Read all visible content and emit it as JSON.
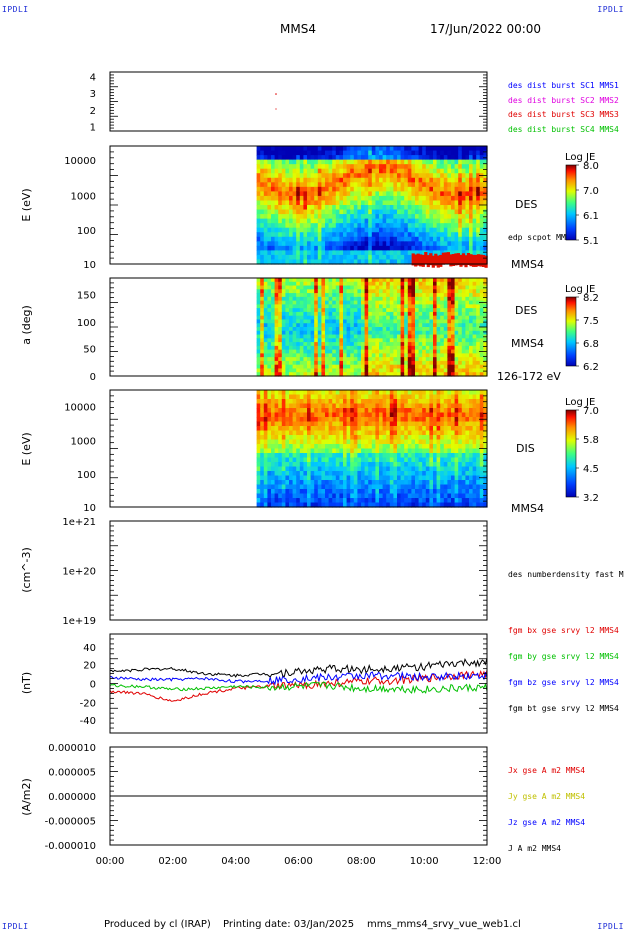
{
  "corners": {
    "tl": "IPDLI",
    "tr": "IPDLI",
    "bl": "IPDLI",
    "br": "IPDLI"
  },
  "header": {
    "mission": "MMS4",
    "date": "17/Jun/2022 00:00"
  },
  "footer": {
    "producer": "Produced by cl (IRAP)",
    "printing": "Printing date: 03/Jan/2025",
    "file": "mms_mms4_srvy_vue_web1.cl"
  },
  "time_ticks": [
    "00:00",
    "02:00",
    "04:00",
    "06:00",
    "08:00",
    "10:00",
    "12:00"
  ],
  "panels": {
    "p1": {
      "yticks": [
        "4",
        "3",
        "2",
        "1"
      ],
      "legend": [
        {
          "text": "des dist burst SC1 MMS1",
          "color": "#0000ff"
        },
        {
          "text": "des dist burst SC2 MMS2",
          "color": "#e000e0"
        },
        {
          "text": "des dist burst SC3 MMS3",
          "color": "#e00000"
        },
        {
          "text": "des dist burst SC4 MMS4",
          "color": "#00c000"
        }
      ]
    },
    "p2": {
      "ylabel": "E (eV)",
      "yticks": [
        "10000",
        "1000",
        "100",
        "10"
      ],
      "cb_title": "Log JE",
      "cb_ticks": [
        "8.0",
        "7.0",
        "6.1",
        "5.1"
      ],
      "label1": "DES",
      "label2": "edp scpot MMS4",
      "label3": "MMS4"
    },
    "p3": {
      "ylabel": "a (deg)",
      "yticks": [
        "150",
        "100",
        "50",
        "0"
      ],
      "cb_title": "Log JE",
      "cb_ticks": [
        "8.2",
        "7.5",
        "6.8",
        "6.2"
      ],
      "label1": "DES",
      "label2": "MMS4",
      "label3": "126-172 eV"
    },
    "p4": {
      "ylabel": "E (eV)",
      "yticks": [
        "10000",
        "1000",
        "100",
        "10"
      ],
      "cb_title": "Log JE",
      "cb_ticks": [
        "7.0",
        "5.8",
        "4.5",
        "3.2"
      ],
      "label1": "DIS",
      "label2": "MMS4"
    },
    "p5": {
      "ylabel": "(cm^-3)",
      "yticks": [
        "1e+21",
        "1e+20",
        "1e+19"
      ],
      "label1": "des numberdensity fast M"
    },
    "p6": {
      "ylabel": "(nT)",
      "yticks": [
        "40",
        "20",
        "0",
        "-20",
        "-40"
      ],
      "legend": [
        {
          "text": "fgm bx gse srvy l2 MMS4",
          "color": "#e00000"
        },
        {
          "text": "fgm by gse srvy l2 MMS4",
          "color": "#00c000"
        },
        {
          "text": "fgm bz gse srvy l2 MMS4",
          "color": "#0000ff"
        },
        {
          "text": "fgm bt gse srvy l2 MMS4",
          "color": "#000000"
        }
      ]
    },
    "p7": {
      "ylabel": "(A/m2)",
      "yticks": [
        "0.000010",
        "0.000005",
        "0.000000",
        "-0.000005",
        "-0.000010"
      ],
      "legend": [
        {
          "text": "Jx gse A m2 MMS4",
          "color": "#e00000"
        },
        {
          "text": "Jy gse A m2 MMS4",
          "color": "#c0c000"
        },
        {
          "text": "Jz gse A m2 MMS4",
          "color": "#0000ff"
        },
        {
          "text": "J A m2 MMS4",
          "color": "#000000"
        }
      ]
    }
  },
  "chart_data": {
    "type": "heatmap",
    "x_range": [
      "00:00",
      "12:00"
    ],
    "data_start": "04:40",
    "spectrograms": [
      {
        "panel": "p2",
        "ylim": [
          10,
          25000
        ],
        "yscale": "log",
        "zlim": [
          5.1,
          8.0
        ],
        "z_label": "Log JE"
      },
      {
        "panel": "p3",
        "ylim": [
          0,
          180
        ],
        "zlim": [
          6.2,
          8.2
        ],
        "z_label": "Log JE"
      },
      {
        "panel": "p4",
        "ylim": [
          10,
          25000
        ],
        "yscale": "log",
        "zlim": [
          3.2,
          7.0
        ],
        "z_label": "Log JE"
      }
    ],
    "magnetic_field": {
      "ylim": [
        -50,
        50
      ],
      "x": [
        "00:00",
        "01:00",
        "02:00",
        "03:00",
        "04:00",
        "05:00",
        "06:00",
        "07:00",
        "08:00",
        "09:00",
        "10:00",
        "11:00",
        "12:00"
      ],
      "series": [
        {
          "name": "fgm bx gse srvy l2 MMS4",
          "values": [
            -8,
            -10,
            -18,
            -10,
            -5,
            -3,
            -2,
            0,
            2,
            3,
            5,
            8,
            10
          ],
          "color": "#e00000"
        },
        {
          "name": "fgm by gse srvy l2 MMS4",
          "values": [
            -2,
            -3,
            -6,
            -5,
            -3,
            -4,
            -3,
            -2,
            -5,
            -5,
            -6,
            -5,
            -4
          ],
          "color": "#00c000"
        },
        {
          "name": "fgm bz gse srvy l2 MMS4",
          "values": [
            6,
            4,
            4,
            5,
            2,
            3,
            5,
            6,
            8,
            8,
            6,
            8,
            8
          ],
          "color": "#0000ff"
        },
        {
          "name": "fgm bt gse srvy l2 MMS4",
          "values": [
            12,
            14,
            15,
            10,
            8,
            10,
            12,
            15,
            14,
            16,
            17,
            20,
            22
          ],
          "color": "#000000"
        }
      ]
    },
    "current_density": {
      "ylim": [
        -1e-05,
        1e-05
      ],
      "value": 0.0
    }
  }
}
